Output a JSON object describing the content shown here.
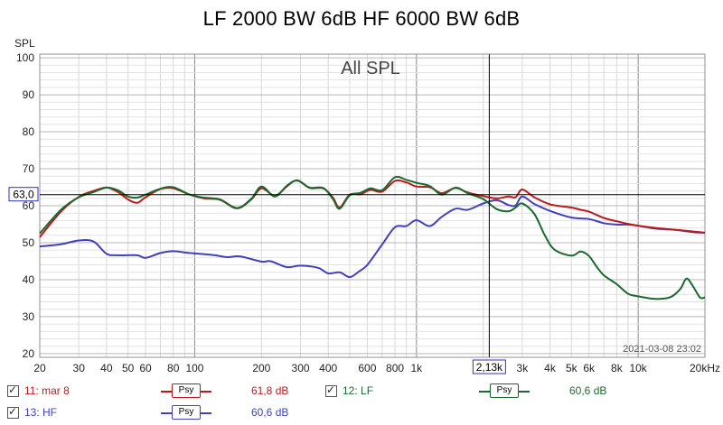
{
  "window": {
    "title": "LF 2000 BW 6dB HF 6000 BW 6dB"
  },
  "chart_data": {
    "type": "line",
    "title": "LF 2000 BW 6dB HF 6000 BW 6dB",
    "annotation": "All SPL",
    "ylabel": "SPL",
    "xlabel": "",
    "x_unit_label": "20kHz",
    "x_scale": "log",
    "xlim": [
      20,
      20000
    ],
    "ylim": [
      19,
      101
    ],
    "grid": true,
    "x_tick_labels": [
      {
        "v": 20,
        "t": "20"
      },
      {
        "v": 30,
        "t": "30"
      },
      {
        "v": 40,
        "t": "40"
      },
      {
        "v": 50,
        "t": "50"
      },
      {
        "v": 60,
        "t": "60"
      },
      {
        "v": 80,
        "t": "80"
      },
      {
        "v": 100,
        "t": "100"
      },
      {
        "v": 200,
        "t": "200"
      },
      {
        "v": 300,
        "t": "300"
      },
      {
        "v": 400,
        "t": "400"
      },
      {
        "v": 600,
        "t": "600"
      },
      {
        "v": 800,
        "t": "800"
      },
      {
        "v": 1000,
        "t": "1k"
      },
      {
        "v": 3000,
        "t": "3k"
      },
      {
        "v": 4000,
        "t": "4k"
      },
      {
        "v": 5000,
        "t": "5k"
      },
      {
        "v": 6000,
        "t": "6k"
      },
      {
        "v": 8000,
        "t": "8k"
      },
      {
        "v": 10000,
        "t": "10k"
      }
    ],
    "y_ticks": [
      20,
      30,
      40,
      50,
      60,
      70,
      80,
      90,
      100
    ],
    "cursor": {
      "x": 2130,
      "x_label": "2,13k",
      "y": 63,
      "y_label": "63,0"
    },
    "timestamp": "2021-03-08 23:02",
    "series": [
      {
        "name": "HF",
        "color": "#4040c0",
        "points": [
          [
            20,
            49
          ],
          [
            25,
            49.6
          ],
          [
            30,
            50.6
          ],
          [
            35,
            50.3
          ],
          [
            40,
            47
          ],
          [
            45,
            46.6
          ],
          [
            55,
            46.6
          ],
          [
            60,
            45.9
          ],
          [
            70,
            47.2
          ],
          [
            80,
            47.7
          ],
          [
            95,
            47.2
          ],
          [
            120,
            46.7
          ],
          [
            140,
            46.1
          ],
          [
            160,
            46.3
          ],
          [
            200,
            44.9
          ],
          [
            220,
            45
          ],
          [
            260,
            43.4
          ],
          [
            300,
            43.8
          ],
          [
            360,
            43.2
          ],
          [
            400,
            41.7
          ],
          [
            450,
            42
          ],
          [
            500,
            40.7
          ],
          [
            550,
            42.2
          ],
          [
            600,
            44
          ],
          [
            700,
            49.5
          ],
          [
            800,
            54.2
          ],
          [
            900,
            54.5
          ],
          [
            1000,
            56.1
          ],
          [
            1150,
            54.5
          ],
          [
            1300,
            57
          ],
          [
            1500,
            59.2
          ],
          [
            1700,
            58.9
          ],
          [
            2000,
            60.6
          ],
          [
            2300,
            61.5
          ],
          [
            2600,
            60.2
          ],
          [
            2800,
            60.1
          ],
          [
            3000,
            62.5
          ],
          [
            3400,
            60.5
          ],
          [
            4000,
            58.6
          ],
          [
            5000,
            56.8
          ],
          [
            6000,
            56.4
          ],
          [
            7000,
            55.3
          ],
          [
            8000,
            54.9
          ],
          [
            9000,
            54.9
          ],
          [
            10000,
            54.6
          ],
          [
            12000,
            53.8
          ],
          [
            14000,
            53.6
          ],
          [
            16000,
            53.2
          ],
          [
            18000,
            52.8
          ],
          [
            20000,
            52.7
          ]
        ]
      },
      {
        "name": "mar 8",
        "color": "#c01818",
        "points": [
          [
            20,
            51.5
          ],
          [
            25,
            58.5
          ],
          [
            30,
            62.4
          ],
          [
            35,
            64
          ],
          [
            40,
            64.9
          ],
          [
            45,
            63.7
          ],
          [
            50,
            61.7
          ],
          [
            55,
            60.8
          ],
          [
            60,
            62.3
          ],
          [
            70,
            64.5
          ],
          [
            80,
            64.7
          ],
          [
            95,
            63
          ],
          [
            110,
            62
          ],
          [
            130,
            61.6
          ],
          [
            155,
            59.3
          ],
          [
            180,
            61.7
          ],
          [
            200,
            64.7
          ],
          [
            230,
            62.7
          ],
          [
            260,
            65.2
          ],
          [
            290,
            66.9
          ],
          [
            330,
            64.8
          ],
          [
            380,
            64.7
          ],
          [
            420,
            62.2
          ],
          [
            450,
            59.5
          ],
          [
            500,
            63
          ],
          [
            560,
            63.1
          ],
          [
            620,
            64.3
          ],
          [
            700,
            63.8
          ],
          [
            800,
            66.7
          ],
          [
            900,
            66.3
          ],
          [
            1000,
            65.2
          ],
          [
            1150,
            65
          ],
          [
            1300,
            63.4
          ],
          [
            1500,
            64.8
          ],
          [
            1700,
            63.6
          ],
          [
            2000,
            62.6
          ],
          [
            2300,
            62
          ],
          [
            2600,
            62.5
          ],
          [
            2800,
            62.3
          ],
          [
            3000,
            64.4
          ],
          [
            3400,
            62.3
          ],
          [
            4000,
            60.4
          ],
          [
            5000,
            59.5
          ],
          [
            5500,
            58.9
          ],
          [
            6000,
            58.4
          ],
          [
            7000,
            56.7
          ],
          [
            8000,
            55.8
          ],
          [
            9000,
            55.1
          ],
          [
            10000,
            54.6
          ],
          [
            12000,
            54
          ],
          [
            14000,
            53.6
          ],
          [
            16000,
            53.3
          ],
          [
            18000,
            53
          ],
          [
            20000,
            52.7
          ]
        ]
      },
      {
        "name": "LF",
        "color": "#1a6a30",
        "points": [
          [
            20,
            52.5
          ],
          [
            25,
            59
          ],
          [
            30,
            62.3
          ],
          [
            35,
            63.7
          ],
          [
            40,
            64.9
          ],
          [
            45,
            64.2
          ],
          [
            50,
            62.5
          ],
          [
            55,
            62.2
          ],
          [
            60,
            63
          ],
          [
            70,
            64.6
          ],
          [
            80,
            65
          ],
          [
            95,
            63
          ],
          [
            110,
            62.2
          ],
          [
            130,
            61.7
          ],
          [
            155,
            59.4
          ],
          [
            180,
            61.9
          ],
          [
            200,
            65.2
          ],
          [
            230,
            62.5
          ],
          [
            260,
            65.4
          ],
          [
            290,
            66.8
          ],
          [
            330,
            64.9
          ],
          [
            380,
            64.8
          ],
          [
            420,
            61.8
          ],
          [
            450,
            59.2
          ],
          [
            500,
            62.8
          ],
          [
            560,
            63.5
          ],
          [
            620,
            64.7
          ],
          [
            700,
            64.2
          ],
          [
            800,
            67.7
          ],
          [
            900,
            67
          ],
          [
            1000,
            66.2
          ],
          [
            1150,
            65.3
          ],
          [
            1300,
            63
          ],
          [
            1500,
            64.9
          ],
          [
            1700,
            63.4
          ],
          [
            2000,
            61.8
          ],
          [
            2300,
            59.1
          ],
          [
            2600,
            58.5
          ],
          [
            2800,
            59.5
          ],
          [
            3000,
            60.6
          ],
          [
            3400,
            57.8
          ],
          [
            3800,
            51.9
          ],
          [
            4200,
            48.1
          ],
          [
            5000,
            46.5
          ],
          [
            5500,
            47.6
          ],
          [
            6000,
            46.4
          ],
          [
            6500,
            43.5
          ],
          [
            7000,
            41.2
          ],
          [
            8000,
            38.8
          ],
          [
            9000,
            36.2
          ],
          [
            10000,
            35.5
          ],
          [
            12000,
            34.8
          ],
          [
            14000,
            35.3
          ],
          [
            15500,
            37.5
          ],
          [
            16500,
            40.3
          ],
          [
            17500,
            38.6
          ],
          [
            19000,
            35.2
          ],
          [
            20000,
            35.2
          ]
        ]
      }
    ],
    "legend": [
      {
        "check": "✓",
        "index_label": "11: mar 8",
        "badge": "Psy",
        "value": "61,8 dB",
        "color": "#c01818"
      },
      {
        "check": "✓",
        "index_label": "12: LF",
        "badge": "Psy",
        "value": "60,6 dB",
        "color": "#1a6a30"
      },
      {
        "check": "✓",
        "index_label": "13: HF",
        "badge": "Psy",
        "value": "60,6 dB",
        "color": "#4040c0"
      }
    ]
  }
}
